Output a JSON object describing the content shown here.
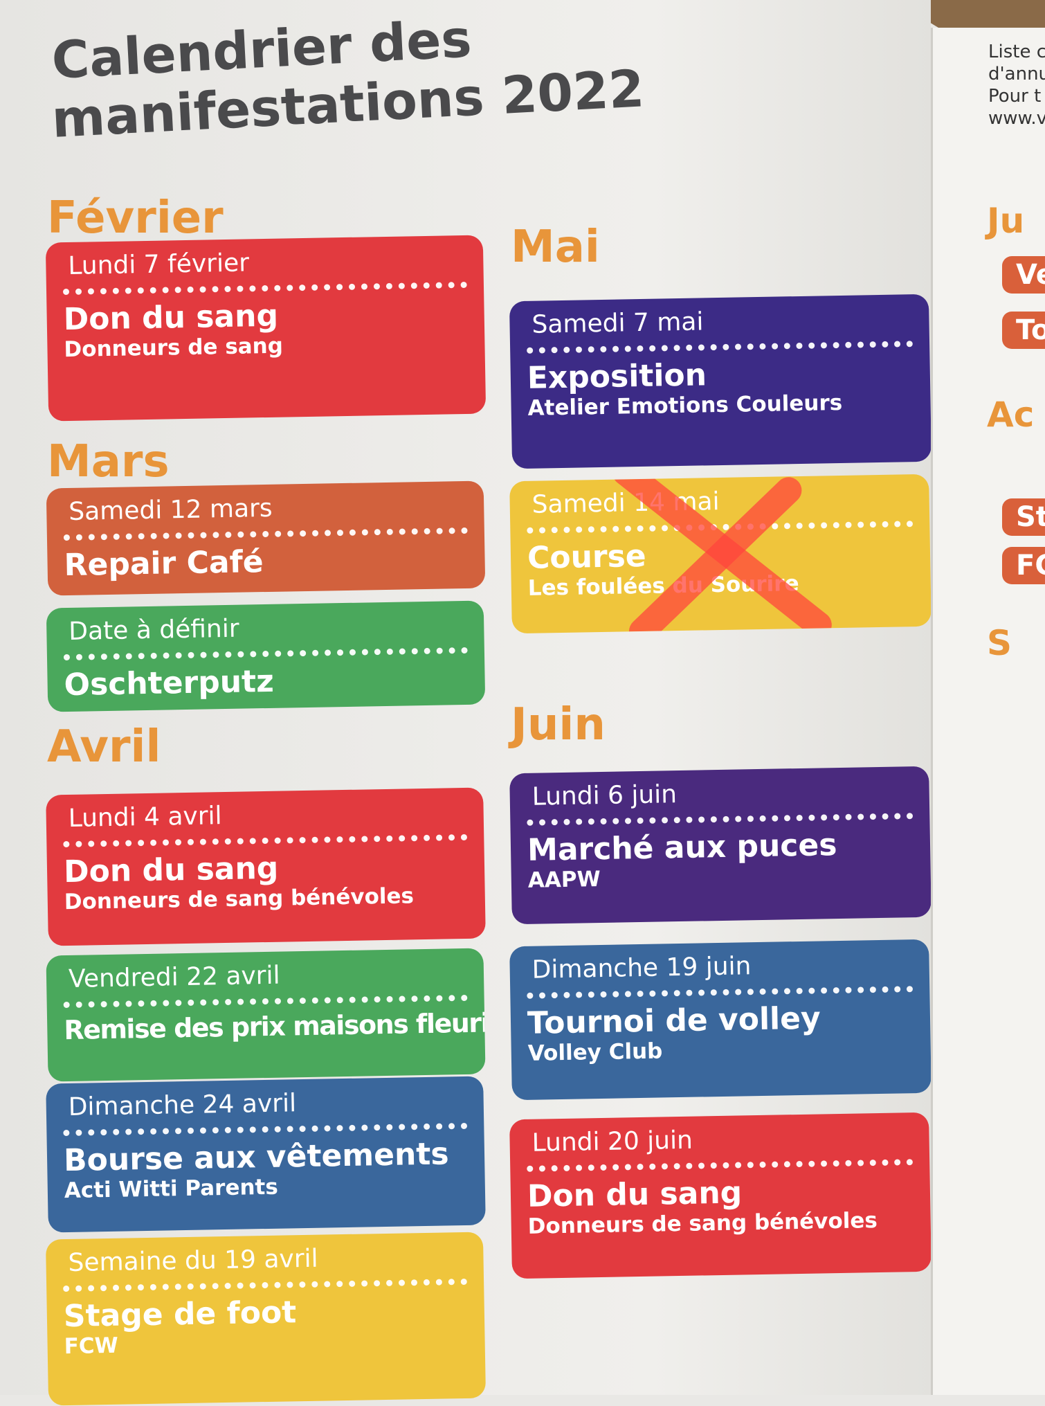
{
  "header": {
    "title_line1": "Calendrier des",
    "title_line2": "manifestations 2022"
  },
  "columns": [
    {
      "months": [
        {
          "name": "Février",
          "events": [
            {
              "date": "Lundi 7 février",
              "title": "Don du sang",
              "org": "Donneurs de sang",
              "color": "#e23a3f"
            }
          ]
        },
        {
          "name": "Mars",
          "events": [
            {
              "date": "Samedi 12 mars",
              "title": "Repair Café",
              "color": "#d2613d"
            },
            {
              "date": "Date à définir",
              "title": "Oschterputz",
              "color": "#4aa85c"
            }
          ]
        },
        {
          "name": "Avril",
          "events": [
            {
              "date": "Lundi 4 avril",
              "title": "Don du sang",
              "org": "Donneurs de sang bénévoles",
              "color": "#e23a3f"
            },
            {
              "date": "Vendredi 22 avril",
              "title": "Remise des prix maisons fleuries",
              "color": "#4aa85c"
            },
            {
              "date": "Dimanche 24 avril",
              "title": "Bourse aux vêtements",
              "org": "Acti Witti Parents",
              "color": "#3a679c"
            },
            {
              "date": "Semaine du 19 avril",
              "title": "Stage de foot",
              "org": "FCW",
              "color": "#efc53c"
            }
          ]
        }
      ]
    },
    {
      "months": [
        {
          "name": "Mai",
          "events": [
            {
              "date": "Samedi 7 mai",
              "title": "Exposition",
              "org": "Atelier Emotions Couleurs",
              "color": "#3c2b86"
            },
            {
              "date": "Samedi 14 mai",
              "title": "Course",
              "org": "Les foulées du Sourire",
              "color": "#efc53c",
              "cancelled": true
            }
          ]
        },
        {
          "name": "Juin",
          "events": [
            {
              "date": "Lundi 6 juin",
              "title": "Marché aux puces",
              "org": "AAPW",
              "color": "#4a2a7e"
            },
            {
              "date": "Dimanche 19 juin",
              "title": "Tournoi de volley",
              "org": "Volley Club",
              "color": "#3a679c"
            },
            {
              "date": "Lundi 20 juin",
              "title": "Don du sang",
              "org": "Donneurs de sang bénévoles",
              "color": "#e23a3f"
            }
          ]
        }
      ]
    }
  ],
  "right_page": {
    "lines": [
      "Liste c",
      "d'annu",
      "Pour t",
      "www.v"
    ],
    "fragments": [
      "Ju",
      "Ve",
      "To",
      "Ac",
      "St",
      "FC",
      "S"
    ]
  }
}
